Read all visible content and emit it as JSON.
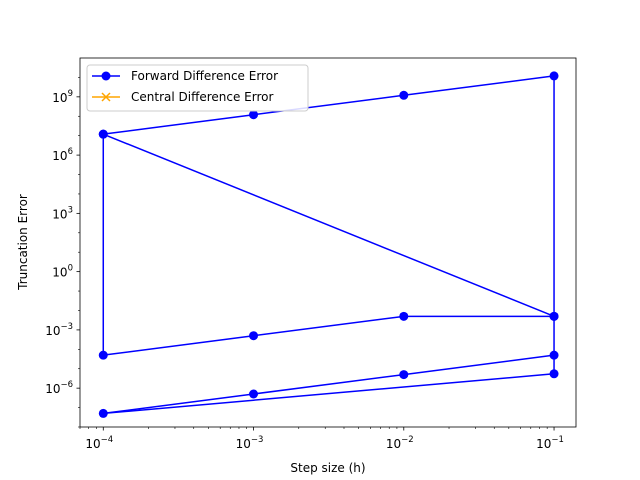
{
  "chart_data": {
    "type": "line",
    "title": "",
    "xlabel": "Step size (h)",
    "ylabel": "Truncation Error",
    "xscale": "log",
    "yscale": "log",
    "xlim": [
      7e-05,
      0.14
    ],
    "ylim": [
      1e-08,
      100000000000.0
    ],
    "x_ticks": [
      {
        "value": 0.0001,
        "label": "10",
        "exp": "−4"
      },
      {
        "value": 0.001,
        "label": "10",
        "exp": "−3"
      },
      {
        "value": 0.01,
        "label": "10",
        "exp": "−2"
      },
      {
        "value": 0.1,
        "label": "10",
        "exp": "−1"
      }
    ],
    "y_ticks": [
      {
        "value": 1e-06,
        "label": "10",
        "exp": "−6"
      },
      {
        "value": 0.001,
        "label": "10",
        "exp": "−3"
      },
      {
        "value": 1,
        "label": "10",
        "exp": "0"
      },
      {
        "value": 1000.0,
        "label": "10",
        "exp": "3"
      },
      {
        "value": 1000000.0,
        "label": "10",
        "exp": "6"
      },
      {
        "value": 1000000000.0,
        "label": "10",
        "exp": "9"
      }
    ],
    "grid": false,
    "legend_position": "top-left",
    "series": [
      {
        "name": "Forward Difference Error",
        "color": "#0000ff",
        "marker": "circle",
        "points": [
          {
            "x": 0.0001,
            "y": 12000000.0
          },
          {
            "x": 0.001,
            "y": 120000000.0
          },
          {
            "x": 0.01,
            "y": 1200000000.0
          },
          {
            "x": 0.1,
            "y": 12000000000.0
          },
          {
            "x": 0.1,
            "y": 0.005
          },
          {
            "x": 0.0001,
            "y": 12000000.0
          },
          {
            "x": 0.0001,
            "y": 5e-05
          },
          {
            "x": 0.001,
            "y": 0.0005
          },
          {
            "x": 0.01,
            "y": 0.005
          },
          {
            "x": 0.1,
            "y": 0.005
          },
          {
            "x": 0.1,
            "y": 5.5e-06
          },
          {
            "x": 0.0001,
            "y": 5e-08
          },
          {
            "x": 0.001,
            "y": 5e-07
          },
          {
            "x": 0.01,
            "y": 5e-06
          },
          {
            "x": 0.1,
            "y": 5e-05
          }
        ],
        "segments": [
          [
            0,
            3
          ],
          [
            3,
            4
          ],
          [
            4,
            5
          ],
          [
            5,
            6
          ],
          [
            6,
            9
          ],
          [
            9,
            10
          ],
          [
            10,
            11
          ],
          [
            11,
            14
          ]
        ]
      },
      {
        "name": "Central Difference Error",
        "color": "#ffa500",
        "marker": "x",
        "points": []
      }
    ]
  }
}
